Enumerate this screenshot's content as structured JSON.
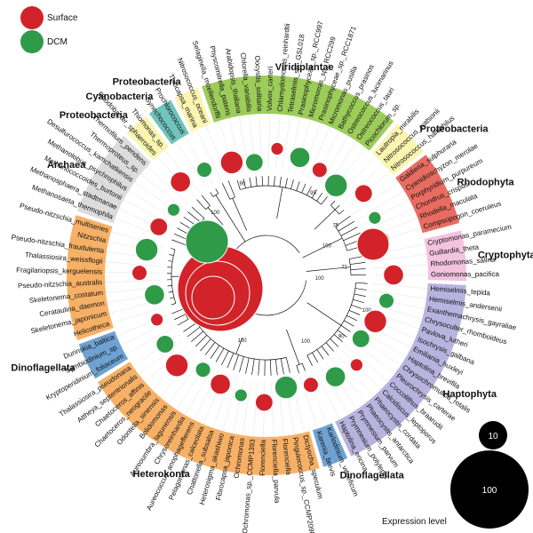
{
  "legend": {
    "items": [
      {
        "label": "Surface",
        "color": "#d2232a"
      },
      {
        "label": "DCM",
        "color": "#2f9a48"
      }
    ]
  },
  "size_legend": {
    "title": "Expression level",
    "values": [
      "10",
      "100"
    ]
  },
  "colors": {
    "surface": "#d2232a",
    "dcm": "#2f9a48",
    "branch": "#111111",
    "guide": "#c8c8c8"
  },
  "bootstrap_labels": [
    "100",
    "100",
    "100",
    "100",
    "100",
    "100",
    "100",
    "75",
    "70",
    "71",
    "90",
    "95",
    "90"
  ],
  "sectors": [
    {
      "name": "Cryptophyta",
      "color": "#f4c3e0",
      "tips": [
        "Cryptomonas_paramecium",
        "Guillardia_theta",
        "Rhodomonas_salina",
        "Goniomonas_pacifica"
      ]
    },
    {
      "name": "Haptophyta",
      "color": "#b9b3df",
      "tips": [
        "Hemiselmis_tepida",
        "Hemiselmis_andersenii",
        "Exanthemachrysis_gayraliae",
        "Chrysoculter_rhomboideus",
        "Pavlova_lutheri",
        "Isochrysis_galbana",
        "Emiliania_huxleyi",
        "Haptolina_brevifila",
        "Chrysochromulina_rotalis",
        "Pleurochrysis_carterae",
        "Coccolithus_braarudii",
        "Calcidiscus_leptoporus",
        "Phaeocystis_cordata",
        "Phaeocystis_antarctica",
        "Prymnesium_parvum",
        "Prymnesium_polylepis",
        "Haptolina_ericina"
      ]
    },
    {
      "name": "Dinoflagellata",
      "color": "#6ea2d2",
      "tips": [
        "Karlodinium_veneficum",
        "Karenia_brevis"
      ]
    },
    {
      "name": "Heterokonta",
      "color": "#f7b167",
      "tips": [
        "Dictyocha_speculum",
        "Pinguiococcus_sp._CCMP2098",
        "Florenciella",
        "Florenciella_parvula",
        "Florenciella",
        "Ochromonas_sp._CCMP1393",
        "Ochromonas",
        "Fibrocapsa_japonica",
        "Heterosigma_akashiwo",
        "Chattonella_subsalsa",
        "Pelagomonas_calceolata",
        "Aureococcus_anophagefferens",
        "Chrysoreinhardia",
        "Aureoumbra_lagunensis",
        "Bolidomonas",
        "Odontella_sinensis",
        "Chaetoceros_neogracile",
        "Chaetoceros_affinis",
        "Attheya_septentrionalis",
        "Thalassiosira_pseudonana"
      ]
    },
    {
      "name": "Dinoflagellata",
      "color": "#6ea2d2",
      "tips": [
        "Kryptoperidinium_foliaceum",
        "Symbiodinium_sp.",
        "Durinskia_baltica"
      ]
    },
    {
      "name": "",
      "color": "#f7b167",
      "tips": [
        "Helicotheca",
        "Skeletonema_japonicum",
        "Cerataulina_daemon",
        "Skeletonema_costatum",
        "Pseudo-nitzschia_australis",
        "Fragilariopsis_kerguelensis",
        "Thalassiosira_weissflogii",
        "Pseudo-nitzschia_fraudulenta",
        "Nitzschia",
        "Pseudo-nitzschia_multiseries"
      ]
    },
    {
      "name": "Archaea",
      "color": "#dcdcdc",
      "tips": [
        "Methanosaeta_thermophila",
        "Methanosphaera_stadtmanae",
        "Methanococcoides_burtonii",
        "Methanolobus_psychrophilus",
        "Desulfurococcus_kamchatkensis",
        "Thermoproteus_sp.",
        "Thermofilum_pendens"
      ]
    },
    {
      "name": "Proteobacteria",
      "color": "#fbf5b0",
      "tips": [
        "Rhodobacter_sphaeroides",
        "Thiomonas_sp."
      ]
    },
    {
      "name": "Cyanobacteria",
      "color": "#6fc4bb",
      "tips": [
        "Synechococcus",
        "Prochlorococcus"
      ]
    },
    {
      "name": "Proteobacteria",
      "color": "#fbf5b0",
      "tips": [
        "Thiocapsa_marina",
        "Nitrosococcus_oceani"
      ]
    },
    {
      "name": "Viridiplantae",
      "color": "#9ccc5a",
      "tips": [
        "Selaginella_moellendorffii",
        "Physcomitrella_patens",
        "Arabidopsis_thaliana",
        "Chlorella_variabilis",
        "Oocystis_solitaria",
        "Volvox_carteri",
        "Chlamydomonas_reinhardtii",
        "Tetraselmis_sp._GSL018",
        "Prasinophyceae_sp._RCC997",
        "Micromonas_sp._RCC299",
        "Prasinophyceae_sp._RCC1871",
        "Micromonas_pusilla",
        "Bathycoccus_prasinos",
        "Ostreococcus_lucimarinus",
        "Ostreococcus_tauri",
        "Picochlorum_sp."
      ]
    },
    {
      "name": "Proteobacteria",
      "color": "#fbf5b0",
      "tips": [
        "Lautropia_mirabilis",
        "Nitrosococcus_watsonii",
        "Nitrosococcus_halophilus"
      ]
    },
    {
      "name": "Rhodophyta",
      "color": "#e96c61",
      "tips": [
        "Galdieria_sulphuraria",
        "Cyanidioschyzon_merolae",
        "Porphyridium_purpureum",
        "Chondrus_crispus",
        "Rhodella_maculata",
        "Compsopogon_coeruleus"
      ]
    }
  ]
}
